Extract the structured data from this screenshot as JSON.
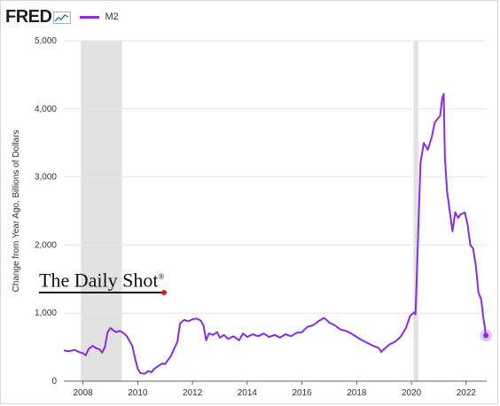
{
  "header": {
    "logo_text": "FRED",
    "logo_icon": "line-chart-icon"
  },
  "legend": {
    "label": "M2",
    "color": "#8b2be2"
  },
  "watermark": {
    "text": "The Daily Shot",
    "mark": "®"
  },
  "chart_data": {
    "type": "line",
    "ylabel": "Change from Year Ago, Billions of Dollars",
    "ylim": [
      0,
      5000
    ],
    "xlim": [
      2007.3,
      2022.75
    ],
    "y_ticks": [
      0,
      1000,
      2000,
      3000,
      4000,
      5000
    ],
    "y_tick_labels": [
      "0",
      "1,000",
      "2,000",
      "3,000",
      "4,000",
      "5,000"
    ],
    "x_ticks": [
      2008,
      2010,
      2012,
      2014,
      2016,
      2018,
      2020,
      2022
    ],
    "x_tick_labels": [
      "2008",
      "2010",
      "2012",
      "2014",
      "2016",
      "2018",
      "2020",
      "2022"
    ],
    "grid": "horizontal",
    "recessions": [
      [
        2007.92,
        2009.42
      ],
      [
        2020.08,
        2020.25
      ]
    ],
    "recession_color": "#e1e1e1",
    "series": [
      {
        "name": "M2",
        "color": "#8b2be2",
        "points": [
          [
            2007.3,
            450
          ],
          [
            2007.5,
            440
          ],
          [
            2007.7,
            460
          ],
          [
            2007.9,
            420
          ],
          [
            2008.0,
            410
          ],
          [
            2008.1,
            380
          ],
          [
            2008.2,
            470
          ],
          [
            2008.35,
            520
          ],
          [
            2008.5,
            480
          ],
          [
            2008.6,
            470
          ],
          [
            2008.7,
            420
          ],
          [
            2008.8,
            500
          ],
          [
            2008.9,
            720
          ],
          [
            2009.0,
            780
          ],
          [
            2009.1,
            750
          ],
          [
            2009.2,
            720
          ],
          [
            2009.35,
            740
          ],
          [
            2009.5,
            700
          ],
          [
            2009.6,
            660
          ],
          [
            2009.7,
            590
          ],
          [
            2009.8,
            520
          ],
          [
            2009.9,
            340
          ],
          [
            2010.0,
            180
          ],
          [
            2010.1,
            120
          ],
          [
            2010.25,
            110
          ],
          [
            2010.4,
            150
          ],
          [
            2010.5,
            130
          ],
          [
            2010.6,
            180
          ],
          [
            2010.75,
            220
          ],
          [
            2010.9,
            260
          ],
          [
            2011.0,
            250
          ],
          [
            2011.1,
            310
          ],
          [
            2011.2,
            360
          ],
          [
            2011.3,
            450
          ],
          [
            2011.45,
            580
          ],
          [
            2011.55,
            850
          ],
          [
            2011.7,
            900
          ],
          [
            2011.85,
            880
          ],
          [
            2012.0,
            910
          ],
          [
            2012.15,
            920
          ],
          [
            2012.3,
            890
          ],
          [
            2012.4,
            820
          ],
          [
            2012.5,
            600
          ],
          [
            2012.6,
            700
          ],
          [
            2012.75,
            680
          ],
          [
            2012.9,
            720
          ],
          [
            2013.0,
            640
          ],
          [
            2013.15,
            680
          ],
          [
            2013.3,
            620
          ],
          [
            2013.5,
            660
          ],
          [
            2013.7,
            600
          ],
          [
            2013.85,
            700
          ],
          [
            2014.0,
            650
          ],
          [
            2014.2,
            690
          ],
          [
            2014.4,
            660
          ],
          [
            2014.6,
            700
          ],
          [
            2014.8,
            650
          ],
          [
            2015.0,
            680
          ],
          [
            2015.2,
            640
          ],
          [
            2015.4,
            690
          ],
          [
            2015.6,
            660
          ],
          [
            2015.8,
            710
          ],
          [
            2016.0,
            720
          ],
          [
            2016.2,
            800
          ],
          [
            2016.4,
            820
          ],
          [
            2016.6,
            880
          ],
          [
            2016.8,
            930
          ],
          [
            2016.9,
            900
          ],
          [
            2017.0,
            860
          ],
          [
            2017.2,
            820
          ],
          [
            2017.4,
            760
          ],
          [
            2017.6,
            740
          ],
          [
            2017.8,
            700
          ],
          [
            2018.0,
            650
          ],
          [
            2018.2,
            600
          ],
          [
            2018.4,
            560
          ],
          [
            2018.6,
            520
          ],
          [
            2018.8,
            490
          ],
          [
            2018.9,
            430
          ],
          [
            2019.0,
            470
          ],
          [
            2019.2,
            540
          ],
          [
            2019.4,
            580
          ],
          [
            2019.6,
            650
          ],
          [
            2019.8,
            780
          ],
          [
            2019.95,
            960
          ],
          [
            2020.1,
            1010
          ],
          [
            2020.15,
            980
          ],
          [
            2020.25,
            2200
          ],
          [
            2020.33,
            3200
          ],
          [
            2020.45,
            3500
          ],
          [
            2020.6,
            3400
          ],
          [
            2020.75,
            3600
          ],
          [
            2020.85,
            3800
          ],
          [
            2020.95,
            3850
          ],
          [
            2021.05,
            3900
          ],
          [
            2021.12,
            4150
          ],
          [
            2021.18,
            4220
          ],
          [
            2021.22,
            3300
          ],
          [
            2021.3,
            2800
          ],
          [
            2021.4,
            2500
          ],
          [
            2021.5,
            2200
          ],
          [
            2021.6,
            2480
          ],
          [
            2021.7,
            2400
          ],
          [
            2021.8,
            2450
          ],
          [
            2021.95,
            2480
          ],
          [
            2022.05,
            2300
          ],
          [
            2022.15,
            2000
          ],
          [
            2022.25,
            1950
          ],
          [
            2022.35,
            1700
          ],
          [
            2022.45,
            1300
          ],
          [
            2022.55,
            1200
          ],
          [
            2022.62,
            950
          ],
          [
            2022.68,
            800
          ],
          [
            2022.72,
            670
          ]
        ],
        "end_marker": [
          2022.72,
          670
        ]
      }
    ]
  }
}
